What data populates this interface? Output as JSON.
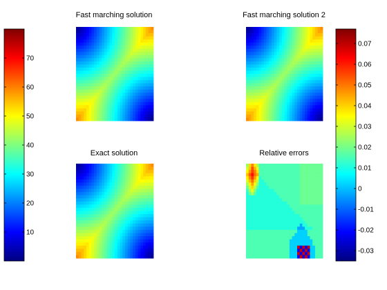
{
  "chart_data": {
    "type": "heatmap",
    "colormap": "jet",
    "panels": [
      {
        "id": "fm1",
        "title": "Fast marching solution",
        "field": "distance",
        "sources": [
          [
            0,
            0
          ],
          [
            1,
            1
          ]
        ],
        "scale": 60,
        "colorbar": "left"
      },
      {
        "id": "fm2",
        "title": "Fast marching solution 2",
        "field": "distance",
        "sources": [
          [
            0,
            0
          ],
          [
            1,
            1
          ]
        ],
        "scale": 60,
        "colorbar": "left"
      },
      {
        "id": "exact",
        "title": "Exact solution",
        "field": "distance",
        "sources": [
          [
            0,
            0
          ],
          [
            1,
            1
          ]
        ],
        "scale": 60,
        "colorbar": "left"
      },
      {
        "id": "errors",
        "title": "Relative errors",
        "field": "relative_error",
        "colorbar": "right"
      }
    ],
    "colorbars": [
      {
        "id": "left",
        "range": [
          0,
          80
        ],
        "ticks": [
          10,
          20,
          30,
          40,
          50,
          60,
          70
        ],
        "tick_labels": [
          "10",
          "20",
          "30",
          "40",
          "50",
          "60",
          "70"
        ]
      },
      {
        "id": "right",
        "range": [
          -0.035,
          0.077
        ],
        "ticks": [
          -0.03,
          -0.02,
          -0.01,
          0,
          0.01,
          0.02,
          0.03,
          0.04,
          0.05,
          0.06,
          0.07
        ],
        "tick_labels": [
          "-0.03",
          "-0.02",
          "-0.01",
          "0",
          "0.01",
          "0.02",
          "0.03",
          "0.04",
          "0.05",
          "0.06",
          "0.07"
        ]
      }
    ],
    "grid_resolution": 30,
    "grid": false,
    "legend": "none"
  }
}
